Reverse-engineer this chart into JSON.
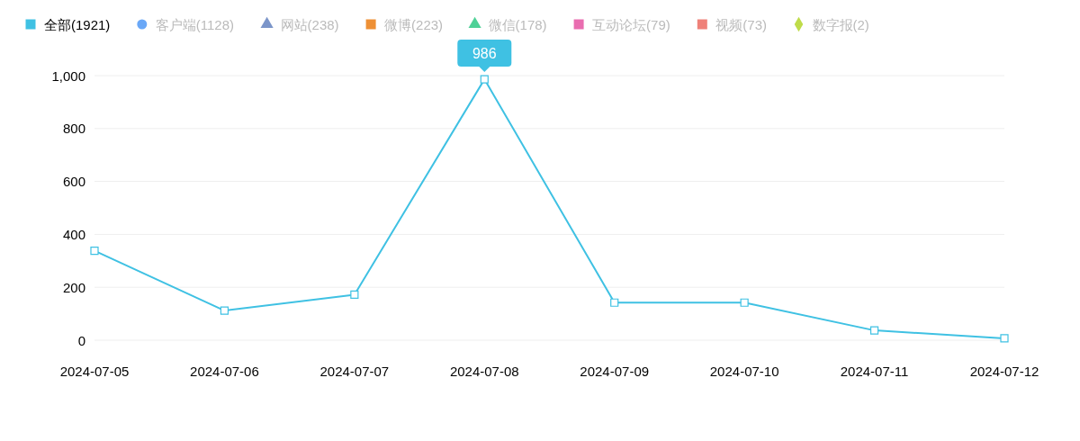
{
  "chart_data": {
    "type": "line",
    "categories": [
      "2024-07-05",
      "2024-07-06",
      "2024-07-07",
      "2024-07-08",
      "2024-07-09",
      "2024-07-10",
      "2024-07-11",
      "2024-07-12"
    ],
    "series": [
      {
        "name": "全部(1921)",
        "color": "#3fc1e3",
        "marker": "square",
        "values": [
          338,
          112,
          172,
          986,
          142,
          142,
          37,
          7
        ]
      },
      {
        "name": "客户端(1128)",
        "color": "#6aa8f7",
        "marker": "circle",
        "values": [
          null,
          null,
          null,
          null,
          null,
          null,
          null,
          null
        ]
      },
      {
        "name": "网站(238)",
        "color": "#7b95c9",
        "marker": "triangle",
        "values": [
          null,
          null,
          null,
          null,
          null,
          null,
          null,
          null
        ]
      },
      {
        "name": "微博(223)",
        "color": "#ee9035",
        "marker": "square",
        "values": [
          null,
          null,
          null,
          null,
          null,
          null,
          null,
          null
        ]
      },
      {
        "name": "微信(178)",
        "color": "#4fd197",
        "marker": "triangle",
        "values": [
          null,
          null,
          null,
          null,
          null,
          null,
          null,
          null
        ]
      },
      {
        "name": "互动论坛(79)",
        "color": "#e96db0",
        "marker": "square",
        "values": [
          null,
          null,
          null,
          null,
          null,
          null,
          null,
          null
        ]
      },
      {
        "name": "视频(73)",
        "color": "#ef8179",
        "marker": "square",
        "values": [
          null,
          null,
          null,
          null,
          null,
          null,
          null,
          null
        ]
      },
      {
        "name": "数字报(2)",
        "color": "#bfdc4a",
        "marker": "diamond",
        "values": [
          null,
          null,
          null,
          null,
          null,
          null,
          null,
          null
        ]
      }
    ],
    "ylim": [
      0,
      1000
    ],
    "yticks": [
      0,
      200,
      400,
      600,
      800,
      {
        "value": 1000,
        "label": "1,000"
      }
    ],
    "grid": "y",
    "legend": "top left",
    "annotations": [
      {
        "text": "986",
        "x": "2024-07-08",
        "y": 986
      }
    ]
  }
}
